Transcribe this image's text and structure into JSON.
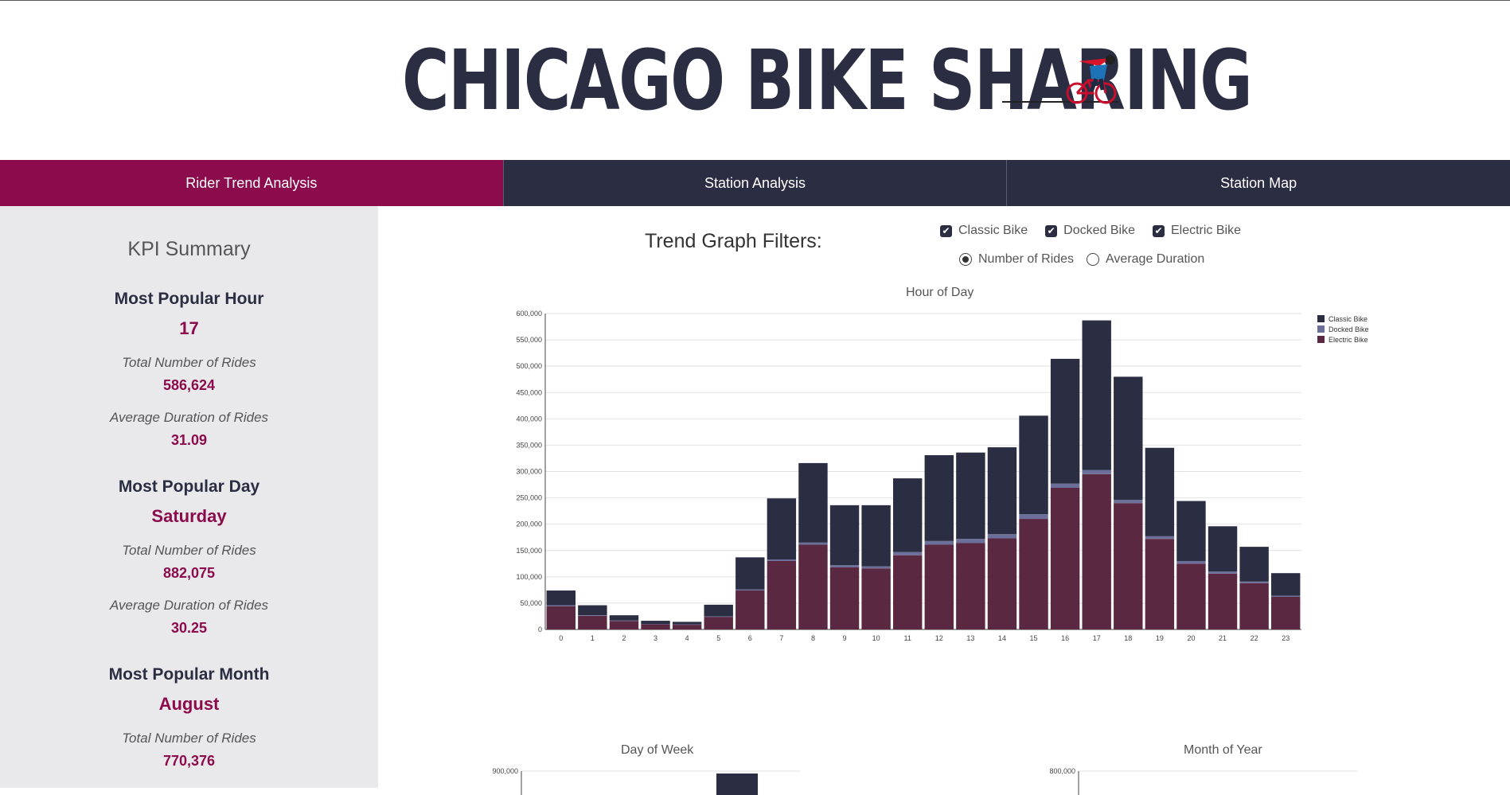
{
  "header": {
    "title": "CHICAGO BIKE SHARING",
    "logo_icon": "cyclist-icon"
  },
  "tabs": [
    {
      "label": "Rider Trend Analysis",
      "active": true
    },
    {
      "label": "Station Analysis",
      "active": false
    },
    {
      "label": "Station Map",
      "active": false
    }
  ],
  "colors": {
    "accent": "#8b0b4c",
    "navy": "#2b2d42",
    "docked": "#6b6f9a",
    "electric": "#5b2842"
  },
  "kpi": {
    "title": "KPI Summary",
    "labels": {
      "rides": "Total Number of Rides",
      "duration": "Average Duration of Rides"
    },
    "blocks": [
      {
        "heading": "Most Popular Hour",
        "value": "17",
        "rides": "586,624",
        "duration": "31.09"
      },
      {
        "heading": "Most Popular Day",
        "value": "Saturday",
        "rides": "882,075",
        "duration": "30.25"
      },
      {
        "heading": "Most Popular Month",
        "value": "August",
        "rides": "770,376",
        "duration": ""
      }
    ]
  },
  "filters": {
    "title": "Trend Graph Filters:",
    "checkboxes": [
      {
        "label": "Classic Bike",
        "checked": true
      },
      {
        "label": "Docked Bike",
        "checked": true
      },
      {
        "label": "Electric Bike",
        "checked": true
      }
    ],
    "radios": [
      {
        "label": "Number of Rides",
        "selected": true
      },
      {
        "label": "Average Duration",
        "selected": false
      }
    ]
  },
  "chart_data": [
    {
      "type": "bar",
      "stacked": true,
      "title": "Hour of Day",
      "xlabel": "",
      "ylabel": "",
      "ylim": [
        0,
        600000
      ],
      "yticks": [
        "0",
        "50,000",
        "100,000",
        "150,000",
        "200,000",
        "250,000",
        "300,000",
        "350,000",
        "400,000",
        "450,000",
        "500,000",
        "550,000",
        "600,000"
      ],
      "categories": [
        "0",
        "1",
        "2",
        "3",
        "4",
        "5",
        "6",
        "7",
        "8",
        "9",
        "10",
        "11",
        "12",
        "13",
        "14",
        "15",
        "16",
        "17",
        "18",
        "19",
        "20",
        "21",
        "22",
        "23"
      ],
      "legend": [
        "Classic Bike",
        "Docked Bike",
        "Electric Bike"
      ],
      "legend_position": "top-right",
      "series": [
        {
          "name": "Electric Bike",
          "values": [
            44000,
            26000,
            16000,
            10000,
            9000,
            24000,
            74000,
            130000,
            161000,
            118000,
            116000,
            141000,
            161000,
            164000,
            173000,
            210000,
            269000,
            295000,
            240000,
            172000,
            125000,
            106000,
            88000,
            62000
          ]
        },
        {
          "name": "Docked Bike",
          "values": [
            2000,
            1000,
            1000,
            500,
            500,
            1000,
            2000,
            3000,
            4000,
            4000,
            4000,
            6000,
            7000,
            8000,
            8000,
            9000,
            8000,
            8000,
            6000,
            5000,
            5000,
            4000,
            3000,
            2000
          ]
        },
        {
          "name": "Classic Bike",
          "values": [
            28000,
            19000,
            10000,
            6000,
            5000,
            22000,
            61000,
            116000,
            151000,
            114000,
            116000,
            140000,
            163000,
            164000,
            165000,
            187000,
            237000,
            284000,
            234000,
            168000,
            114000,
            86000,
            66000,
            43000
          ]
        }
      ]
    },
    {
      "type": "bar",
      "title": "Day of Week",
      "yticks": [
        "900,000"
      ],
      "ylim": [
        0,
        900000
      ]
    },
    {
      "type": "bar",
      "title": "Month of Year",
      "yticks": [
        "800,000"
      ],
      "ylim": [
        0,
        800000
      ]
    }
  ]
}
